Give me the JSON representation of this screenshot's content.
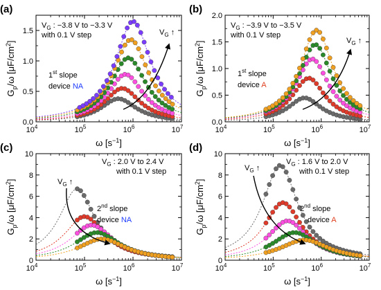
{
  "chart_data": [
    {
      "type": "scatter",
      "panel_label": "(a)",
      "ylabel_main": "G",
      "ylabel_sub": "p",
      "ylabel_rest": "/ω [μF/cm",
      "ylabel_sup": "2",
      "ylabel_end": "]",
      "xlabel_main": "ω [s",
      "xlabel_sup": "−1",
      "xlabel_end": "]",
      "xscale": "log",
      "xlim": [
        10000,
        10000000
      ],
      "xticks": [
        "10^4",
        "10^5",
        "10^6",
        "10^7"
      ],
      "ylim": [
        0,
        1.75
      ],
      "yticks": [
        "0.0",
        "0.5",
        "1.0",
        "1.5"
      ],
      "condition_prefix": "V",
      "condition_sub": "G",
      "condition_text": " : −3.8 V to −3.3 V",
      "step_text": "with 0.1 V step",
      "arrow_label": "V",
      "arrow_label_sub": "G",
      "arrow_symbol": " ↑",
      "slope_sup": "st",
      "slope_pre": "1",
      "slope_text": " slope",
      "device_text": "device ",
      "device_name": "NA",
      "device_color": "#1f3cff",
      "series": [
        {
          "color": "#6a6a6a",
          "peak_x": 500000,
          "peak_y": 0.38,
          "width": 0.75
        },
        {
          "color": "#e03a2a",
          "peak_x": 600000,
          "peak_y": 0.55,
          "width": 0.75
        },
        {
          "color": "#ff4fe0",
          "peak_x": 700000,
          "peak_y": 0.78,
          "width": 0.75
        },
        {
          "color": "#2a8a2a",
          "peak_x": 800000,
          "peak_y": 1.05,
          "width": 0.75
        },
        {
          "color": "#f0a020",
          "peak_x": 900000,
          "peak_y": 1.35,
          "width": 0.75
        },
        {
          "color": "#7a3cff",
          "peak_x": 1000000,
          "peak_y": 1.65,
          "width": 0.75
        }
      ]
    },
    {
      "type": "scatter",
      "panel_label": "(b)",
      "ylabel_main": "G",
      "ylabel_sub": "p",
      "ylabel_rest": "/ω [μF/cm",
      "ylabel_sup": "2",
      "ylabel_end": "]",
      "xlabel_main": "ω [s",
      "xlabel_sup": "−1",
      "xlabel_end": "]",
      "xscale": "log",
      "xlim": [
        10000,
        10000000
      ],
      "xticks": [
        "10^4",
        "10^5",
        "10^6",
        "10^7"
      ],
      "ylim": [
        0,
        2.0
      ],
      "yticks": [
        "0.0",
        "0.5",
        "1.0",
        "1.5",
        "2.0"
      ],
      "condition_prefix": "V",
      "condition_sub": "G",
      "condition_text": " : −3.9 V to −3.5 V",
      "step_text": "with 0.1 V step",
      "arrow_label": "V",
      "arrow_label_sub": "G",
      "arrow_symbol": " ↑",
      "slope_sup": "st",
      "slope_pre": "1",
      "slope_text": " slope",
      "device_text": "device ",
      "device_name": "A",
      "device_color": "#e04020",
      "series": [
        {
          "color": "#6a6a6a",
          "peak_x": 450000,
          "peak_y": 0.45,
          "width": 0.7
        },
        {
          "color": "#e03a2a",
          "peak_x": 550000,
          "peak_y": 0.82,
          "width": 0.7
        },
        {
          "color": "#ff4fe0",
          "peak_x": 650000,
          "peak_y": 1.18,
          "width": 0.7
        },
        {
          "color": "#2a8a2a",
          "peak_x": 750000,
          "peak_y": 1.45,
          "width": 0.7
        },
        {
          "color": "#f0a020",
          "peak_x": 800000,
          "peak_y": 1.72,
          "width": 0.7
        }
      ]
    },
    {
      "type": "scatter",
      "panel_label": "(c)",
      "ylabel_main": "G",
      "ylabel_sub": "p",
      "ylabel_rest": "/ω [μF/cm",
      "ylabel_sup": "2",
      "ylabel_end": "]",
      "xlabel_main": "ω [s",
      "xlabel_sup": "−1",
      "xlabel_end": "]",
      "xscale": "log",
      "xlim": [
        10000,
        10000000
      ],
      "xticks": [
        "10^4",
        "10^5",
        "10^6",
        "10^7"
      ],
      "ylim": [
        0,
        10
      ],
      "yticks": [
        "0",
        "2",
        "4",
        "6",
        "8",
        "10"
      ],
      "condition_prefix": "V",
      "condition_sub": "G",
      "condition_text": " : 2.0 V to 2.4 V",
      "step_text": "with 0.1 V step",
      "arrow_label": "V",
      "arrow_label_sub": "G",
      "arrow_symbol": " ↑",
      "slope_sup": "nd",
      "slope_pre": "2",
      "slope_text": " slope",
      "device_text": "device ",
      "device_name": "NA",
      "device_color": "#1f3cff",
      "series": [
        {
          "color": "#6a6a6a",
          "peak_x": 70000,
          "peak_y": 6.7,
          "width": 0.75
        },
        {
          "color": "#e03a2a",
          "peak_x": 100000,
          "peak_y": 4.1,
          "width": 0.85
        },
        {
          "color": "#ff4fe0",
          "peak_x": 140000,
          "peak_y": 3.3,
          "width": 0.9
        },
        {
          "color": "#2a8a2a",
          "peak_x": 180000,
          "peak_y": 2.6,
          "width": 0.95
        },
        {
          "color": "#f0a020",
          "peak_x": 230000,
          "peak_y": 2.0,
          "width": 1.0
        }
      ]
    },
    {
      "type": "scatter",
      "panel_label": "(d)",
      "ylabel_main": "G",
      "ylabel_sub": "p",
      "ylabel_rest": "/ω [μF/cm",
      "ylabel_sup": "2",
      "ylabel_end": "]",
      "xlabel_main": "ω [s",
      "xlabel_sup": "−1",
      "xlabel_end": "]",
      "xscale": "log",
      "xlim": [
        10000,
        10000000
      ],
      "xticks": [
        "10^4",
        "10^5",
        "10^6",
        "10^7"
      ],
      "ylim": [
        0,
        10
      ],
      "yticks": [
        "0",
        "2",
        "4",
        "6",
        "8",
        "10"
      ],
      "condition_prefix": "V",
      "condition_sub": "G",
      "condition_text": " : 1.6 V to 2.0 V",
      "step_text": "with 0.1 V step",
      "arrow_label": "V",
      "arrow_label_sub": "G",
      "arrow_symbol": " ↑",
      "slope_sup": "nd",
      "slope_pre": "2",
      "slope_text": " slope",
      "device_text": "device ",
      "device_name": "A",
      "device_color": "#e04020",
      "series": [
        {
          "color": "#6a6a6a",
          "peak_x": 140000,
          "peak_y": 8.9,
          "width": 0.75
        },
        {
          "color": "#e03a2a",
          "peak_x": 160000,
          "peak_y": 5.4,
          "width": 0.8
        },
        {
          "color": "#ff4fe0",
          "peak_x": 200000,
          "peak_y": 3.7,
          "width": 0.85
        },
        {
          "color": "#2a8a2a",
          "peak_x": 280000,
          "peak_y": 2.6,
          "width": 0.95
        },
        {
          "color": "#f0a020",
          "peak_x": 450000,
          "peak_y": 1.9,
          "width": 1.05
        }
      ]
    }
  ]
}
